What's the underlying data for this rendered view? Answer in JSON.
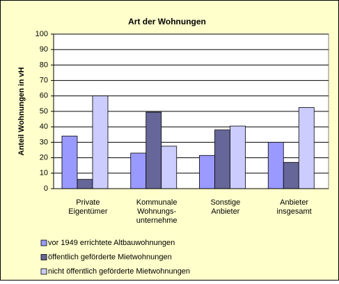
{
  "chart_data": {
    "type": "bar",
    "title": "Art der Wohnungen",
    "y_label": "Anteil Wohnungen in vH",
    "categories": [
      "Private\nEigentümer",
      "Kommunale\nWohnungs-\nunternehme",
      "Sonstige\nAnbieter",
      "Anbieter\ninsgesamt"
    ],
    "series": [
      {
        "name": "vor 1949 errichtete Altbauwohnungen",
        "color": "#9999ff",
        "values": [
          34,
          23,
          21.5,
          30
        ]
      },
      {
        "name": "öffentlich geförderte Mietwohnungen",
        "color": "#666699",
        "values": [
          6,
          49.5,
          38,
          17
        ]
      },
      {
        "name": "nicht öffentlich geförderte Mietwohnungen",
        "color": "#ccccff",
        "values": [
          60,
          27.5,
          40.5,
          52.5
        ]
      }
    ],
    "ylim": [
      0,
      100
    ],
    "yticks": [
      0,
      10,
      20,
      30,
      40,
      50,
      60,
      70,
      80,
      90,
      100
    ],
    "grid": true,
    "legend": "bottom"
  }
}
